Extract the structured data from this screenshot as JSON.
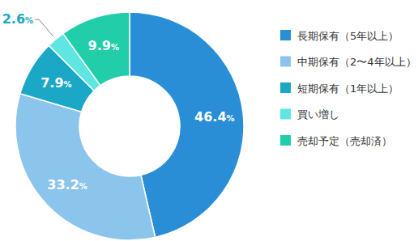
{
  "chart_data": {
    "type": "donut",
    "categories": [
      "長期保有（5年以上）",
      "中期保有（2〜4年以上）",
      "短期保有（1年以上）",
      "買い増し",
      "売却予定（売却済）"
    ],
    "values": [
      46.4,
      33.2,
      7.9,
      2.6,
      9.9
    ],
    "value_labels": [
      "46.4%",
      "33.2%",
      "7.9%",
      "2.6%",
      "9.9%"
    ],
    "colors": [
      "#2a8ed6",
      "#8cc5ec",
      "#1ba8c6",
      "#5fe5e2",
      "#22ceaa"
    ],
    "data_labels": true,
    "legend": "right"
  }
}
